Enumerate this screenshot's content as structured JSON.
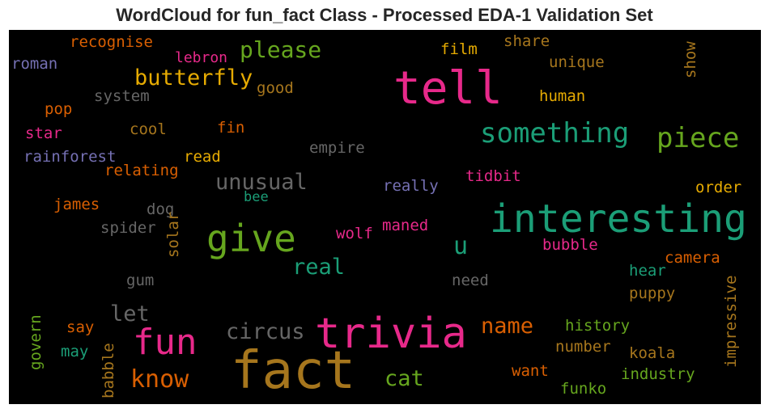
{
  "chart_data": {
    "type": "wordcloud",
    "title": "WordCloud for fun_fact Class - Processed EDA-1 Validation Set",
    "background": "#000000",
    "words": [
      {
        "text": "fact",
        "color": "#a6761d"
      },
      {
        "text": "trivia",
        "color": "#e7298a"
      },
      {
        "text": "interesting",
        "color": "#1b9e77"
      },
      {
        "text": "tell",
        "color": "#e7298a"
      },
      {
        "text": "give",
        "color": "#66a61e"
      },
      {
        "text": "fun",
        "color": "#e7298a"
      },
      {
        "text": "something",
        "color": "#1b9e77"
      },
      {
        "text": "piece",
        "color": "#66a61e"
      },
      {
        "text": "know",
        "color": "#d95f02"
      },
      {
        "text": "butterfly",
        "color": "#e6ab02"
      },
      {
        "text": "circus",
        "color": "#666666"
      },
      {
        "text": "unusual",
        "color": "#666666"
      },
      {
        "text": "please",
        "color": "#66a61e"
      },
      {
        "text": "let",
        "color": "#666666"
      },
      {
        "text": "real",
        "color": "#1b9e77"
      },
      {
        "text": "name",
        "color": "#d95f02"
      },
      {
        "text": "cat",
        "color": "#66a61e"
      },
      {
        "text": "u",
        "color": "#1b9e77"
      },
      {
        "text": "recognise",
        "color": "#d95f02"
      },
      {
        "text": "roman",
        "color": "#7570b3"
      },
      {
        "text": "lebron",
        "color": "#e7298a"
      },
      {
        "text": "film",
        "color": "#e6ab02"
      },
      {
        "text": "share",
        "color": "#a6761d"
      },
      {
        "text": "unique",
        "color": "#a6761d"
      },
      {
        "text": "show",
        "color": "#a6761d"
      },
      {
        "text": "good",
        "color": "#a6761d"
      },
      {
        "text": "system",
        "color": "#666666"
      },
      {
        "text": "human",
        "color": "#e6ab02"
      },
      {
        "text": "pop",
        "color": "#d95f02"
      },
      {
        "text": "star",
        "color": "#e7298a"
      },
      {
        "text": "cool",
        "color": "#a6761d"
      },
      {
        "text": "fin",
        "color": "#d95f02"
      },
      {
        "text": "empire",
        "color": "#666666"
      },
      {
        "text": "rainforest",
        "color": "#7570b3"
      },
      {
        "text": "read",
        "color": "#e6ab02"
      },
      {
        "text": "relating",
        "color": "#d95f02"
      },
      {
        "text": "tidbit",
        "color": "#e7298a"
      },
      {
        "text": "really",
        "color": "#7570b3"
      },
      {
        "text": "order",
        "color": "#e6ab02"
      },
      {
        "text": "bee",
        "color": "#1b9e77"
      },
      {
        "text": "james",
        "color": "#d95f02"
      },
      {
        "text": "dog",
        "color": "#666666"
      },
      {
        "text": "solar",
        "color": "#a6761d"
      },
      {
        "text": "spider",
        "color": "#666666"
      },
      {
        "text": "wolf",
        "color": "#e7298a"
      },
      {
        "text": "maned",
        "color": "#e7298a"
      },
      {
        "text": "bubble",
        "color": "#e7298a"
      },
      {
        "text": "camera",
        "color": "#d95f02"
      },
      {
        "text": "gum",
        "color": "#666666"
      },
      {
        "text": "need",
        "color": "#666666"
      },
      {
        "text": "hear",
        "color": "#1b9e77"
      },
      {
        "text": "impressive",
        "color": "#a6761d"
      },
      {
        "text": "puppy",
        "color": "#a6761d"
      },
      {
        "text": "govern",
        "color": "#66a61e"
      },
      {
        "text": "say",
        "color": "#d95f02"
      },
      {
        "text": "history",
        "color": "#66a61e"
      },
      {
        "text": "may",
        "color": "#1b9e77"
      },
      {
        "text": "babble",
        "color": "#a6761d"
      },
      {
        "text": "number",
        "color": "#a6761d"
      },
      {
        "text": "koala",
        "color": "#a6761d"
      },
      {
        "text": "want",
        "color": "#d95f02"
      },
      {
        "text": "industry",
        "color": "#66a61e"
      },
      {
        "text": "funko",
        "color": "#66a61e"
      }
    ]
  }
}
